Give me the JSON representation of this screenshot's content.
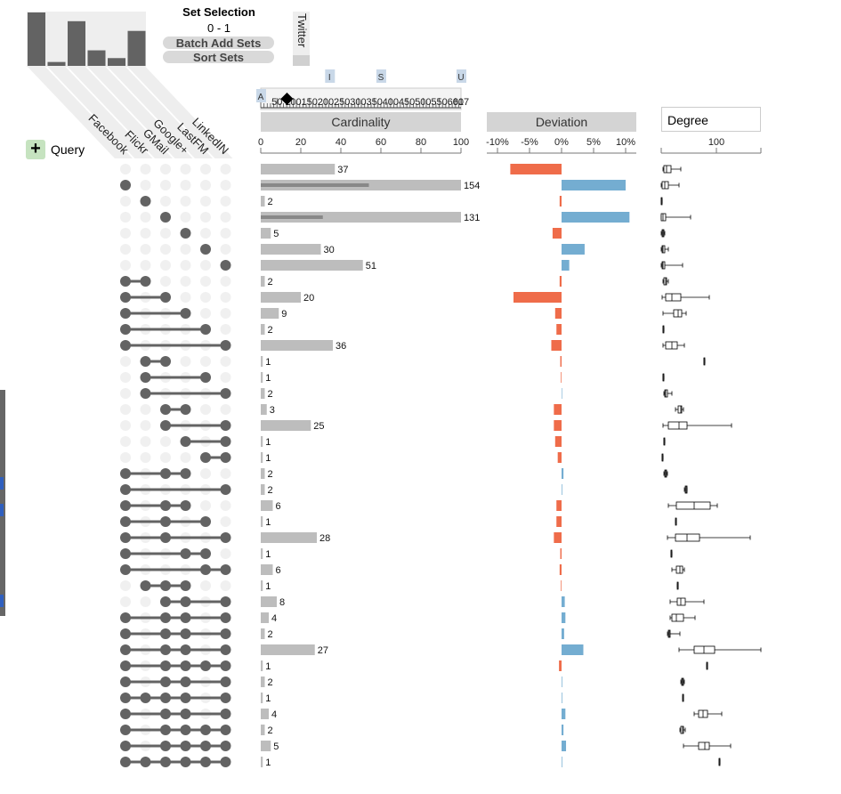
{
  "controls": {
    "set_selection_title": "Set Selection",
    "set_selection_range": "0 - 1",
    "batch_add_label": "Batch Add Sets",
    "sort_sets_label": "Sort Sets",
    "unused_set_label": "Twitter",
    "query_label": "Query",
    "degree_label": "Degree",
    "cardinality_label": "Cardinality",
    "deviation_label": "Deviation"
  },
  "slider": {
    "ticks": [
      "50",
      "100",
      "150",
      "200",
      "250",
      "300",
      "350",
      "400",
      "450",
      "500",
      "550",
      "600",
      "617"
    ],
    "markers": [
      "A",
      "I",
      "S",
      "U"
    ],
    "handle_value": 100
  },
  "colors": {
    "bar": "#bdbdbd",
    "bar_inner": "#888888",
    "dot_on": "#636363",
    "dot_off": "#f0f0f0",
    "dev_neg": "#ef6c4a",
    "dev_pos": "#74add1",
    "header": "#d4d4d4"
  },
  "chart_data": [
    {
      "type": "bar",
      "name": "set-sizes",
      "categories": [
        "Facebook",
        "Flickr",
        "GMail",
        "Google+",
        "LastFM",
        "LinkedIN"
      ],
      "values": [
        55,
        4,
        46,
        16,
        8,
        36
      ]
    },
    {
      "type": "matrix",
      "sets": [
        "Facebook",
        "Flickr",
        "GMail",
        "Google+",
        "LastFM",
        "LinkedIN"
      ],
      "rows": [
        {
          "sets": [],
          "cardinality": 37,
          "inner": 0,
          "deviation": -8.0,
          "box": [
            745,
            746,
            749,
            754,
            765
          ]
        },
        {
          "sets": [
            0
          ],
          "cardinality": 154,
          "inner": 54,
          "deviation": 10.0,
          "box": [
            743,
            744,
            747,
            751,
            763
          ]
        },
        {
          "sets": [
            1
          ],
          "cardinality": 2,
          "inner": 0,
          "deviation": -0.3,
          "box": [
            743,
            743,
            743,
            744,
            744
          ]
        },
        {
          "sets": [
            2
          ],
          "cardinality": 131,
          "inner": 31,
          "deviation": 10.6,
          "box": [
            743,
            743,
            745,
            748,
            776
          ]
        },
        {
          "sets": [
            3
          ],
          "cardinality": 5,
          "inner": 0,
          "deviation": -1.4,
          "box": [
            743,
            744,
            745,
            746,
            747
          ]
        },
        {
          "sets": [
            4
          ],
          "cardinality": 30,
          "inner": 0,
          "deviation": 3.6,
          "box": [
            743,
            744,
            745,
            747,
            751
          ]
        },
        {
          "sets": [
            5
          ],
          "cardinality": 51,
          "inner": 0,
          "deviation": 1.2,
          "box": [
            743,
            744,
            745,
            747,
            767
          ]
        },
        {
          "sets": [
            0,
            1
          ],
          "cardinality": 2,
          "inner": 0,
          "deviation": -0.3,
          "box": [
            745,
            746,
            748,
            749,
            751
          ]
        },
        {
          "sets": [
            0,
            2
          ],
          "cardinality": 20,
          "inner": 0,
          "deviation": -7.5,
          "box": [
            744,
            748,
            755,
            765,
            797
          ]
        },
        {
          "sets": [
            0,
            3
          ],
          "cardinality": 9,
          "inner": 0,
          "deviation": -1.0,
          "box": [
            745,
            757,
            762,
            766,
            771
          ]
        },
        {
          "sets": [
            0,
            4
          ],
          "cardinality": 2,
          "inner": 0,
          "deviation": -0.8,
          "box": [
            745,
            745,
            745,
            746,
            746
          ]
        },
        {
          "sets": [
            0,
            5
          ],
          "cardinality": 36,
          "inner": 0,
          "deviation": -1.6,
          "box": [
            745,
            748,
            755,
            761,
            769
          ]
        },
        {
          "sets": [
            1,
            2
          ],
          "cardinality": 1,
          "inner": 0,
          "deviation": -0.2,
          "box": [
            791,
            791,
            791,
            792,
            792
          ]
        },
        {
          "sets": [
            1,
            4
          ],
          "cardinality": 1,
          "inner": 0,
          "deviation": -0.1,
          "box": [
            745,
            745,
            745,
            746,
            746
          ]
        },
        {
          "sets": [
            1,
            5
          ],
          "cardinality": 2,
          "inner": 0,
          "deviation": 0.0,
          "box": [
            746,
            747,
            748,
            750,
            755
          ]
        },
        {
          "sets": [
            2,
            3
          ],
          "cardinality": 3,
          "inner": 0,
          "deviation": -1.2,
          "box": [
            759,
            762,
            765,
            766,
            768
          ]
        },
        {
          "sets": [
            2,
            5
          ],
          "cardinality": 25,
          "inner": 0,
          "deviation": -1.2,
          "box": [
            745,
            751,
            763,
            772,
            822
          ]
        },
        {
          "sets": [
            3,
            5
          ],
          "cardinality": 1,
          "inner": 0,
          "deviation": -1.0,
          "box": [
            746,
            746,
            746,
            747,
            747
          ]
        },
        {
          "sets": [
            4,
            5
          ],
          "cardinality": 1,
          "inner": 0,
          "deviation": -0.6,
          "box": [
            744,
            744,
            744,
            745,
            745
          ]
        },
        {
          "sets": [
            0,
            2,
            3
          ],
          "cardinality": 2,
          "inner": 0,
          "deviation": 0.3,
          "box": [
            746,
            747,
            748,
            749,
            750
          ]
        },
        {
          "sets": [
            0,
            5
          ],
          "cardinality": 2,
          "inner": 0,
          "deviation": 0.1,
          "box": [
            769,
            770,
            771,
            772,
            772
          ]
        },
        {
          "sets": [
            0,
            2,
            3
          ],
          "cardinality": 6,
          "inner": 0,
          "deviation": -0.8,
          "box": [
            751,
            760,
            780,
            798,
            806
          ]
        },
        {
          "sets": [
            0,
            2,
            4
          ],
          "cardinality": 1,
          "inner": 0,
          "deviation": -0.8,
          "box": [
            759,
            759,
            760,
            760,
            760
          ]
        },
        {
          "sets": [
            0,
            2,
            5
          ],
          "cardinality": 28,
          "inner": 0,
          "deviation": -1.2,
          "box": [
            750,
            759,
            772,
            786,
            843
          ]
        },
        {
          "sets": [
            0,
            3,
            4
          ],
          "cardinality": 1,
          "inner": 0,
          "deviation": -0.2,
          "box": [
            754,
            754,
            754,
            755,
            755
          ]
        },
        {
          "sets": [
            0,
            4,
            5
          ],
          "cardinality": 6,
          "inner": 0,
          "deviation": -0.3,
          "box": [
            755,
            760,
            764,
            767,
            769
          ]
        },
        {
          "sets": [
            1,
            2,
            3
          ],
          "cardinality": 1,
          "inner": 0,
          "deviation": -0.1,
          "box": [
            761,
            761,
            762,
            762,
            762
          ]
        },
        {
          "sets": [
            2,
            3,
            5
          ],
          "cardinality": 8,
          "inner": 0,
          "deviation": 0.5,
          "box": [
            753,
            761,
            765,
            770,
            791
          ]
        },
        {
          "sets": [
            0,
            2,
            3,
            5
          ],
          "cardinality": 4,
          "inner": 0,
          "deviation": 0.6,
          "box": [
            753,
            755,
            760,
            768,
            781
          ]
        },
        {
          "sets": [
            0,
            2,
            3,
            5
          ],
          "cardinality": 2,
          "inner": 0,
          "deviation": 0.4,
          "box": [
            750,
            751,
            752,
            753,
            764
          ]
        },
        {
          "sets": [
            0,
            2,
            3,
            5
          ],
          "cardinality": 27,
          "inner": 0,
          "deviation": 3.4,
          "box": [
            763,
            780,
            791,
            803,
            855
          ]
        },
        {
          "sets": [
            0,
            2,
            3,
            4,
            5
          ],
          "cardinality": 1,
          "inner": 0,
          "deviation": -0.4,
          "box": [
            794,
            794,
            795,
            795,
            795
          ]
        },
        {
          "sets": [
            0,
            2,
            3,
            5
          ],
          "cardinality": 2,
          "inner": 0,
          "deviation": 0.1,
          "box": [
            765,
            766,
            767,
            768,
            769
          ]
        },
        {
          "sets": [
            0,
            1,
            2,
            3,
            5
          ],
          "cardinality": 1,
          "inner": 0,
          "deviation": 0.1,
          "box": [
            767,
            767,
            768,
            768,
            768
          ]
        },
        {
          "sets": [
            0,
            2,
            3,
            5
          ],
          "cardinality": 4,
          "inner": 0,
          "deviation": 0.6,
          "box": [
            780,
            785,
            790,
            795,
            811
          ]
        },
        {
          "sets": [
            0,
            2,
            3,
            4,
            5
          ],
          "cardinality": 2,
          "inner": 0,
          "deviation": 0.3,
          "box": [
            764,
            765,
            767,
            768,
            770
          ]
        },
        {
          "sets": [
            0,
            2,
            3,
            4,
            5
          ],
          "cardinality": 5,
          "inner": 0,
          "deviation": 0.7,
          "box": [
            768,
            785,
            792,
            797,
            821
          ]
        },
        {
          "sets": [
            0,
            1,
            2,
            3,
            4,
            5
          ],
          "cardinality": 1,
          "inner": 0,
          "deviation": 0.1,
          "box": [
            808,
            808,
            808,
            809,
            809
          ]
        }
      ]
    },
    {
      "type": "bar",
      "name": "cardinality",
      "xlim": [
        0,
        100
      ],
      "ticks": [
        "0",
        "20",
        "40",
        "60",
        "80",
        "100"
      ]
    },
    {
      "type": "bar",
      "name": "deviation",
      "xlim": [
        -11,
        11
      ],
      "ticks": [
        "-10%",
        "-5%",
        "0%",
        "5%",
        "10%"
      ]
    },
    {
      "type": "box",
      "name": "degree",
      "ticks": [
        "100"
      ]
    }
  ]
}
